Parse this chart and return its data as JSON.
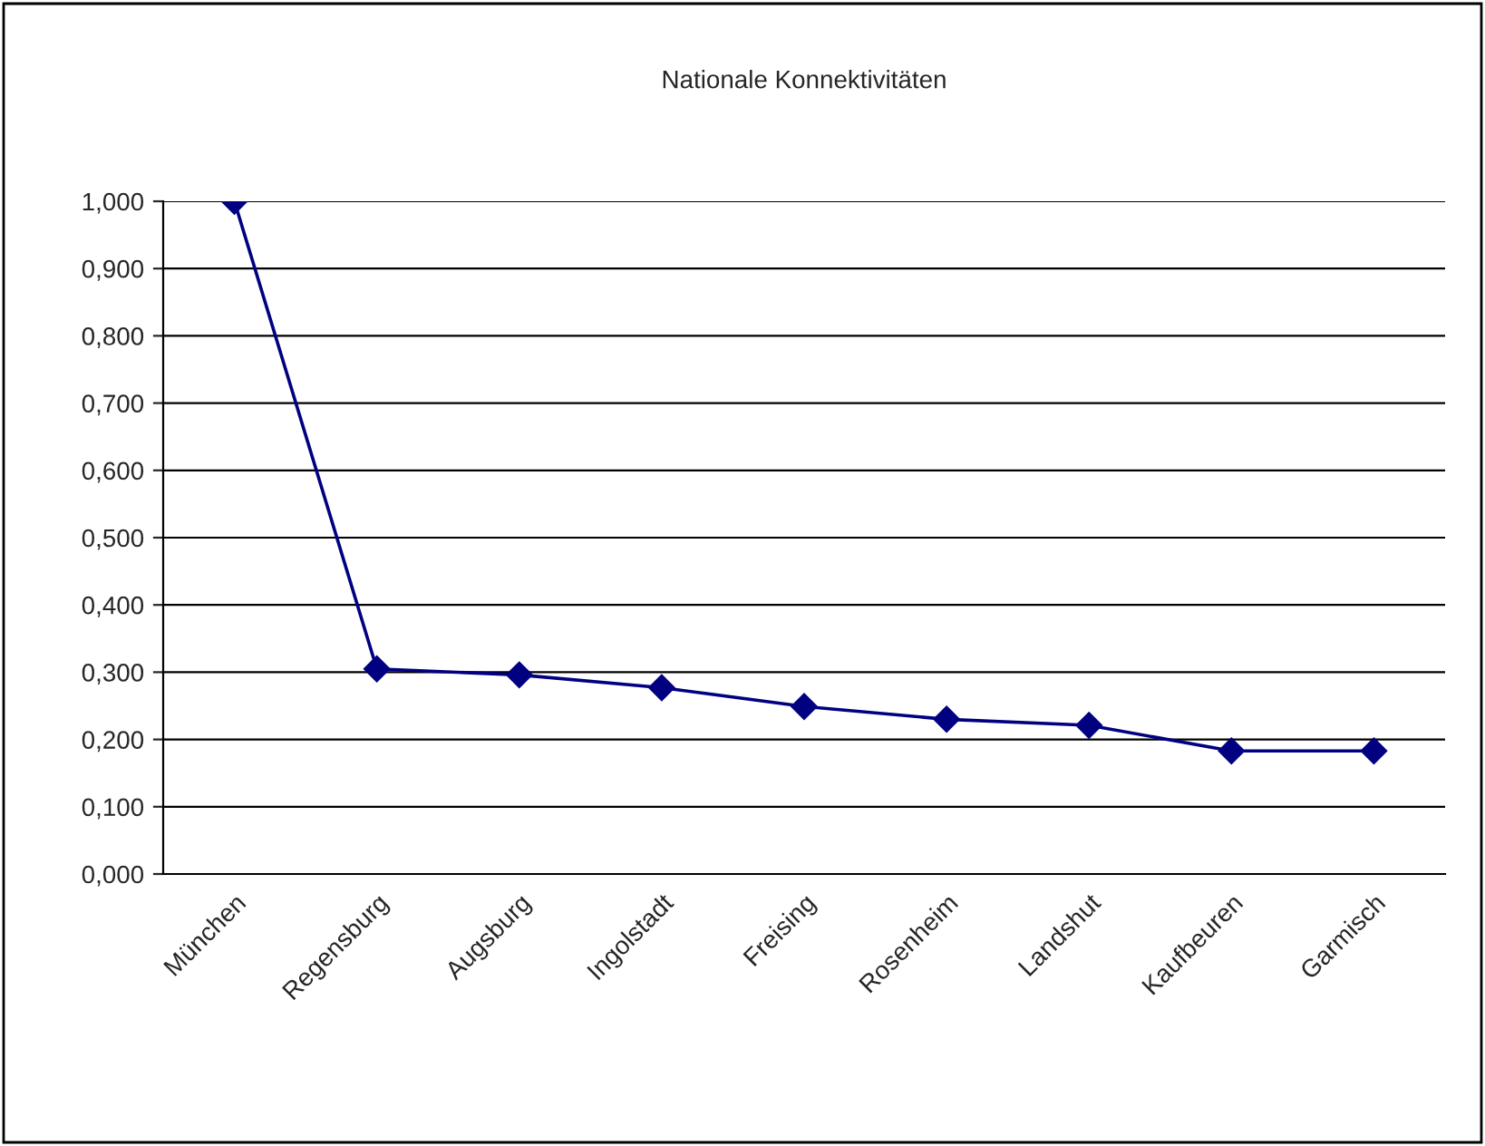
{
  "chart_data": {
    "type": "line",
    "title": "Nationale Konnektivitäten",
    "categories": [
      "München",
      "Regensburg",
      "Augsburg",
      "Ingolstadt",
      "Freising",
      "Rosenheim",
      "Landshut",
      "Kaufbeuren",
      "Garmisch"
    ],
    "series": [
      {
        "color": "#000080",
        "values": [
          1.0,
          0.305,
          0.296,
          0.277,
          0.249,
          0.23,
          0.221,
          0.183,
          0.183
        ]
      }
    ],
    "ylim": [
      0,
      1.0
    ],
    "yticks": [
      {
        "value": 0,
        "label": "0,000"
      },
      {
        "value": 0.1,
        "label": "0,100"
      },
      {
        "value": 0.2,
        "label": "0,200"
      },
      {
        "value": 0.3,
        "label": "0,300"
      },
      {
        "value": 0.4,
        "label": "0,400"
      },
      {
        "value": 0.5,
        "label": "0,500"
      },
      {
        "value": 0.6,
        "label": "0,600"
      },
      {
        "value": 0.7,
        "label": "0,700"
      },
      {
        "value": 0.8,
        "label": "0,800"
      },
      {
        "value": 0.9,
        "label": "0,900"
      },
      {
        "value": 1.0,
        "label": "1,000"
      }
    ],
    "grid": "y",
    "marker": "diamond",
    "legend": false
  }
}
